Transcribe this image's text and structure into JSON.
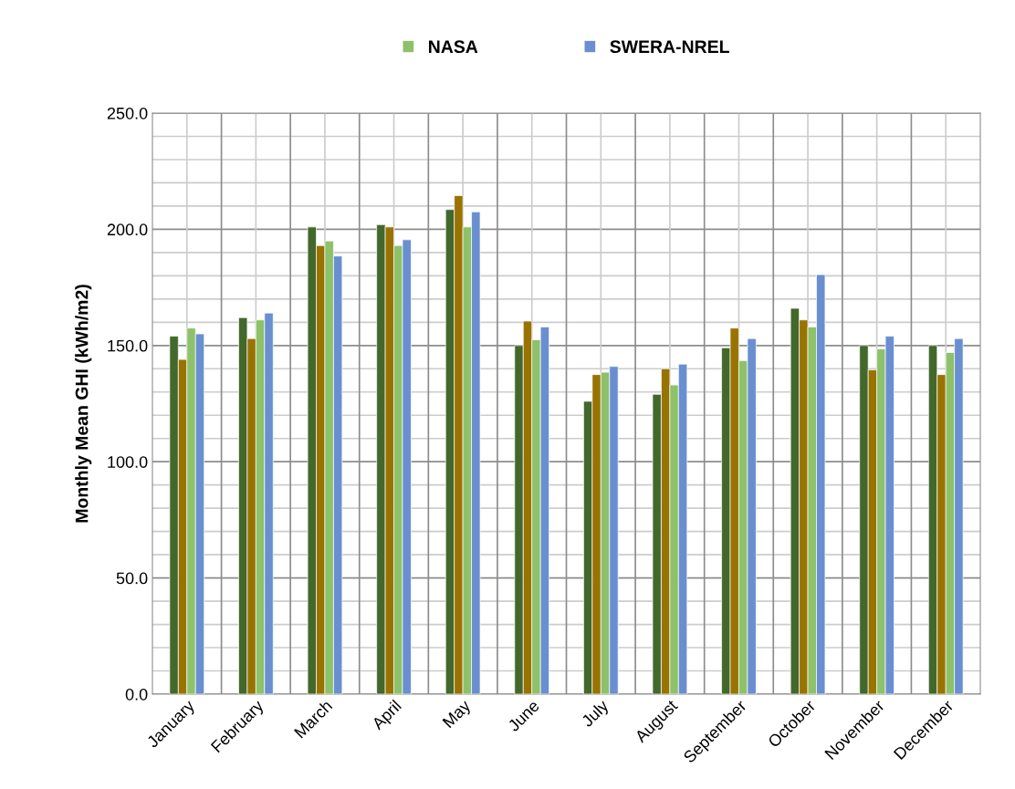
{
  "chart_data": {
    "type": "bar",
    "ylabel": "Monthly Mean GHI (kWh/m2)",
    "categories": [
      "January",
      "February",
      "March",
      "April",
      "May",
      "June",
      "July",
      "August",
      "September",
      "October",
      "November",
      "December"
    ],
    "series": [
      {
        "color": "#43682b",
        "values": [
          154,
          162,
          201,
          202,
          208.5,
          150,
          126,
          129,
          149,
          166,
          150,
          150
        ]
      },
      {
        "color": "#997300",
        "values": [
          144,
          153,
          193,
          201,
          214.5,
          160.5,
          137.5,
          140,
          157.5,
          161,
          139.5,
          137.5
        ]
      },
      {
        "name": "NASA",
        "color": "#8dc16a",
        "values": [
          157.5,
          161,
          195,
          193,
          201,
          152.5,
          138.5,
          133,
          143.5,
          158,
          148.5,
          147
        ]
      },
      {
        "name": "SWERA-NREL",
        "color": "#6a8fd0",
        "values": [
          155,
          164,
          188.5,
          195.5,
          207.5,
          158,
          141,
          142,
          153,
          180.5,
          154,
          153
        ]
      }
    ],
    "ylim": [
      0,
      250
    ],
    "yticks": [
      {
        "value": 0,
        "label": "0.0"
      },
      {
        "value": 10,
        "label": null
      },
      {
        "value": 20,
        "label": null
      },
      {
        "value": 30,
        "label": null
      },
      {
        "value": 40,
        "label": null
      },
      {
        "value": 50,
        "label": "50.0"
      },
      {
        "value": 60,
        "label": null
      },
      {
        "value": 70,
        "label": null
      },
      {
        "value": 80,
        "label": null
      },
      {
        "value": 90,
        "label": null
      },
      {
        "value": 100,
        "label": "100.0"
      },
      {
        "value": 110,
        "label": null
      },
      {
        "value": 120,
        "label": null
      },
      {
        "value": 130,
        "label": null
      },
      {
        "value": 140,
        "label": null
      },
      {
        "value": 150,
        "label": "150.0"
      },
      {
        "value": 160,
        "label": null
      },
      {
        "value": 170,
        "label": null
      },
      {
        "value": 180,
        "label": null
      },
      {
        "value": 190,
        "label": null
      },
      {
        "value": 200,
        "label": "200.0"
      },
      {
        "value": 210,
        "label": null
      },
      {
        "value": 220,
        "label": null
      },
      {
        "value": 230,
        "label": null
      },
      {
        "value": 240,
        "label": null
      },
      {
        "value": 250,
        "label": "250.0"
      }
    ],
    "grid": true,
    "legend": "top"
  }
}
